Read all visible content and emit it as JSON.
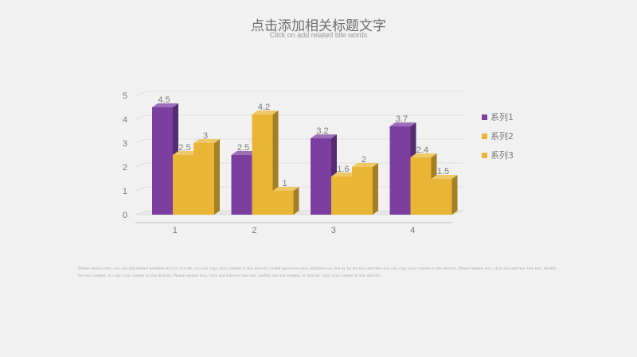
{
  "header": {
    "title": "点击添加相关标题文字",
    "subtitle": "Click on add related title words"
  },
  "body_text": "Please replace text, you can add related headline text by ctrl+alt, you can copy your content to this directly closed openclose-plus adjusted-box line by by the text and then you can copy your content to the directly. Please replace text, click and add new line text, modify the text content, or copy your content to this directly. Please replace text, click and selected line text, modify the text content, or directly copy your content to this directly.",
  "colors": {
    "series1": "#7b3fa0",
    "series2": "#e9b535",
    "series3": "#e9b535",
    "background": "#f1f1f1"
  },
  "chart_data": {
    "type": "bar",
    "categories": [
      "1",
      "2",
      "3",
      "4"
    ],
    "series": [
      {
        "name": "系列1",
        "values": [
          4.5,
          2.5,
          3.2,
          3.7
        ]
      },
      {
        "name": "系列2",
        "values": [
          2.5,
          4.2,
          1.6,
          2.4
        ]
      },
      {
        "name": "系列3",
        "values": [
          3,
          1,
          2,
          1.5
        ]
      }
    ],
    "yticks": [
      "0",
      "1",
      "2",
      "3",
      "4",
      "5"
    ],
    "ylim": [
      0,
      5
    ],
    "grid": true,
    "legend": "right",
    "style": "3d-clustered"
  }
}
